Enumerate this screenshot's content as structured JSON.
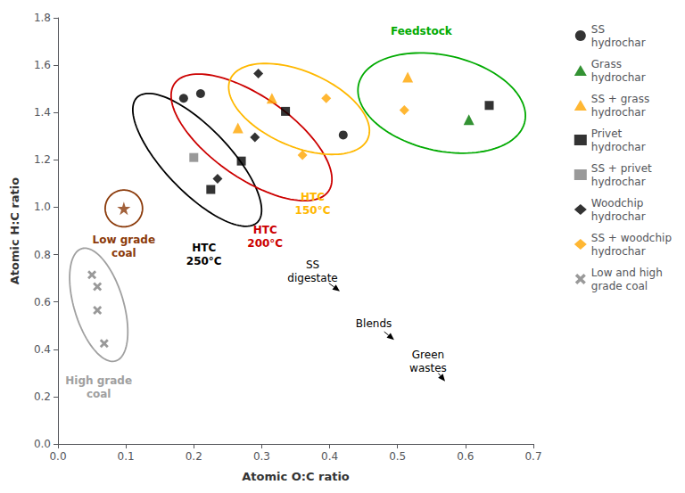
{
  "chart_data": {
    "type": "scatter",
    "xlabel": "Atomic O:C ratio",
    "ylabel": "Atomic H:C ratio",
    "xlim": [
      0.0,
      0.7
    ],
    "ylim": [
      0.0,
      1.8
    ],
    "xticks": [
      {
        "value": 0,
        "label": "0.0"
      },
      0.1,
      0.2,
      0.3,
      0.4,
      0.5,
      0.6,
      0.7
    ],
    "yticks": [
      {
        "value": 0,
        "label": "0.0"
      },
      0.2,
      0.4,
      0.6,
      0.8,
      {
        "value": 1,
        "label": "1.0"
      },
      1.2,
      1.4,
      1.6,
      1.8
    ],
    "grid": false,
    "legend": "right",
    "series": [
      {
        "name": "SS\nhydrochar",
        "color": "#000000",
        "marker": "circle",
        "values": [
          [
            0.185,
            1.46
          ],
          [
            0.21,
            1.48
          ],
          [
            0.42,
            1.305
          ]
        ]
      },
      {
        "name": "Grass\nhydrochar",
        "color": "#007700",
        "marker": "triangle",
        "values": [
          [
            0.605,
            1.37
          ]
        ]
      },
      {
        "name": "SS + grass\nhydrochar",
        "color": "#FFA500",
        "marker": "triangle",
        "values": [
          [
            0.265,
            1.335
          ],
          [
            0.315,
            1.46
          ],
          [
            0.515,
            1.55
          ]
        ]
      },
      {
        "name": "Privet\nhydrochar",
        "color": "#000000",
        "marker": "square",
        "values": [
          [
            0.225,
            1.075
          ],
          [
            0.27,
            1.195
          ],
          [
            0.335,
            1.405
          ],
          [
            0.635,
            1.43
          ]
        ]
      },
      {
        "name": "SS + privet\nhydrochar",
        "color": "#808080",
        "marker": "square",
        "values": [
          [
            0.2,
            1.21
          ]
        ]
      },
      {
        "name": "Woodchip\nhydrochar",
        "color": "#000000",
        "marker": "diamond",
        "values": [
          [
            0.235,
            1.12
          ],
          [
            0.29,
            1.295
          ],
          [
            0.295,
            1.565
          ]
        ]
      },
      {
        "name": "SS + woodchip\nhydrochar",
        "color": "#FFA500",
        "marker": "diamond",
        "values": [
          [
            0.36,
            1.22
          ],
          [
            0.395,
            1.46
          ],
          [
            0.51,
            1.41
          ]
        ]
      },
      {
        "name": "Low and high\ngrade coal",
        "color": "#808080",
        "marker": "x",
        "values": [
          [
            0.05,
            0.715
          ],
          [
            0.058,
            0.665
          ],
          [
            0.058,
            0.565
          ],
          [
            0.068,
            0.425
          ]
        ]
      },
      {
        "color": "#8B3A0A",
        "marker": "star",
        "values": [
          [
            0.097,
            0.995
          ]
        ]
      }
    ],
    "ellipses": [
      {
        "cx": 0.205,
        "cy": 1.2,
        "width": 0.12,
        "height": 0.58,
        "angle": 15,
        "color": "#000000"
      },
      {
        "cx": 0.285,
        "cy": 1.295,
        "width": 0.17,
        "height": 0.56,
        "angle": 18,
        "color": "#CC0000"
      },
      {
        "cx": 0.355,
        "cy": 1.415,
        "width": 0.175,
        "height": 0.4,
        "angle": 18,
        "color": "#FFB800"
      },
      {
        "cx": 0.565,
        "cy": 1.44,
        "width": 0.235,
        "height": 0.43,
        "angle": 12,
        "color": "#00AA00"
      },
      {
        "cx": 0.097,
        "cy": 0.995,
        "width": 0.055,
        "height": 0.155,
        "angle": 0,
        "color": "#8B3A0A"
      },
      {
        "cx": 0.06,
        "cy": 0.588,
        "width": 0.075,
        "height": 0.48,
        "angle": 5,
        "color": "#A0A0A0"
      }
    ],
    "text_labels": [
      {
        "text": "HTC\n250°C",
        "x": 0.215,
        "y": 0.8,
        "color": "#000000"
      },
      {
        "text": "HTC\n200°C",
        "x": 0.305,
        "y": 0.875,
        "color": "#CC0000"
      },
      {
        "text": "HTC\n150°C",
        "x": 0.375,
        "y": 1.015,
        "color": "#FFB800"
      },
      {
        "text": "Feedstock",
        "x": 0.535,
        "y": 1.745,
        "color": "#00AA00"
      },
      {
        "text": "Low grade\ncoal",
        "x": 0.097,
        "y": 0.835,
        "color": "#8B3A0A"
      },
      {
        "text": "High grade\ncoal",
        "x": 0.06,
        "y": 0.24,
        "color": "#A0A0A0"
      }
    ],
    "annotations": [
      {
        "text": "SS\ndigestate",
        "xy": [
          0.415,
          0.645
        ],
        "xytext": [
          0.375,
          0.73
        ]
      },
      {
        "text": "Blends",
        "xy": [
          0.495,
          0.44
        ],
        "xytext": [
          0.465,
          0.51
        ]
      },
      {
        "text": "Green\nwastes",
        "xy": [
          0.57,
          0.265
        ],
        "xytext": [
          0.545,
          0.35
        ]
      }
    ]
  }
}
